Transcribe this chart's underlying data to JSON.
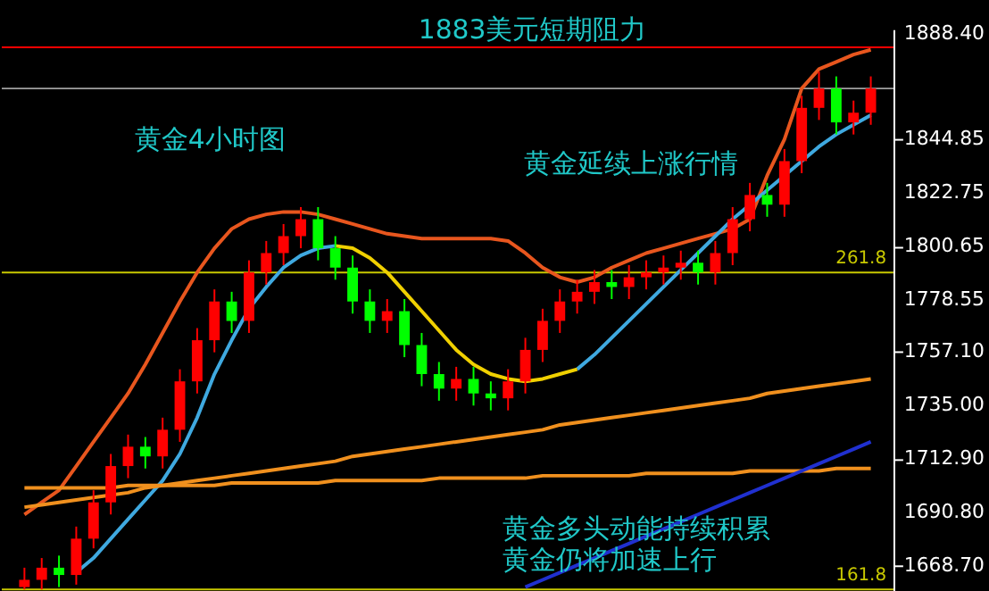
{
  "chart_data": {
    "type": "candlestick",
    "categories": [
      null,
      null,
      null,
      null,
      null,
      null,
      null,
      null,
      null,
      null,
      null,
      null,
      null,
      null,
      null,
      null,
      null,
      null,
      null,
      null,
      null,
      null,
      null,
      null,
      null,
      null,
      null,
      null,
      null,
      null,
      null,
      null,
      null,
      null,
      null,
      null,
      null,
      null,
      null,
      null,
      null,
      null,
      null,
      null,
      null,
      null,
      null,
      null,
      null,
      null
    ],
    "ohlc": [
      [
        1660,
        1668,
        1659,
        1663
      ],
      [
        1663,
        1672,
        1659,
        1668
      ],
      [
        1668,
        1673,
        1660,
        1665
      ],
      [
        1665,
        1685,
        1661,
        1680
      ],
      [
        1680,
        1700,
        1676,
        1695
      ],
      [
        1695,
        1715,
        1690,
        1710
      ],
      [
        1710,
        1723,
        1705,
        1718
      ],
      [
        1718,
        1722,
        1709,
        1714
      ],
      [
        1714,
        1730,
        1709,
        1725
      ],
      [
        1725,
        1750,
        1720,
        1745
      ],
      [
        1745,
        1767,
        1740,
        1762
      ],
      [
        1762,
        1783,
        1757,
        1778
      ],
      [
        1778,
        1782,
        1765,
        1770
      ],
      [
        1770,
        1795,
        1765,
        1790
      ],
      [
        1790,
        1803,
        1785,
        1798
      ],
      [
        1798,
        1810,
        1793,
        1805
      ],
      [
        1805,
        1817,
        1800,
        1812
      ],
      [
        1812,
        1817,
        1795,
        1800
      ],
      [
        1800,
        1805,
        1787,
        1792
      ],
      [
        1792,
        1797,
        1773,
        1778
      ],
      [
        1778,
        1783,
        1765,
        1770
      ],
      [
        1770,
        1779,
        1765,
        1774
      ],
      [
        1774,
        1779,
        1755,
        1760
      ],
      [
        1760,
        1765,
        1743,
        1748
      ],
      [
        1748,
        1753,
        1737,
        1742
      ],
      [
        1742,
        1751,
        1737,
        1746
      ],
      [
        1746,
        1751,
        1735,
        1740
      ],
      [
        1740,
        1745,
        1733,
        1738
      ],
      [
        1738,
        1750,
        1733,
        1745
      ],
      [
        1745,
        1763,
        1740,
        1758
      ],
      [
        1758,
        1775,
        1753,
        1770
      ],
      [
        1770,
        1783,
        1765,
        1778
      ],
      [
        1778,
        1787,
        1773,
        1782
      ],
      [
        1782,
        1791,
        1777,
        1786
      ],
      [
        1786,
        1791,
        1779,
        1784
      ],
      [
        1784,
        1793,
        1779,
        1788
      ],
      [
        1788,
        1795,
        1783,
        1790
      ],
      [
        1790,
        1797,
        1785,
        1792
      ],
      [
        1792,
        1799,
        1787,
        1794
      ],
      [
        1794,
        1799,
        1785,
        1790
      ],
      [
        1790,
        1803,
        1785,
        1798
      ],
      [
        1798,
        1817,
        1793,
        1812
      ],
      [
        1812,
        1827,
        1807,
        1822
      ],
      [
        1822,
        1827,
        1813,
        1818
      ],
      [
        1818,
        1841,
        1813,
        1836
      ],
      [
        1836,
        1863,
        1831,
        1858
      ],
      [
        1858,
        1873,
        1853,
        1866
      ],
      [
        1866,
        1871,
        1847,
        1852
      ],
      [
        1852,
        1861,
        1847,
        1856
      ],
      [
        1856,
        1871,
        1851,
        1866
      ]
    ],
    "colors": [
      "#ff0000",
      "#ff0000",
      "#00ff00",
      "#ff0000",
      "#ff0000",
      "#ff0000",
      "#ff0000",
      "#00ff00",
      "#ff0000",
      "#ff0000",
      "#ff0000",
      "#ff0000",
      "#00ff00",
      "#ff0000",
      "#ff0000",
      "#ff0000",
      "#ff0000",
      "#00ff00",
      "#00ff00",
      "#00ff00",
      "#00ff00",
      "#ff0000",
      "#00ff00",
      "#00ff00",
      "#00ff00",
      "#ff0000",
      "#00ff00",
      "#00ff00",
      "#ff0000",
      "#ff0000",
      "#ff0000",
      "#ff0000",
      "#ff0000",
      "#ff0000",
      "#00ff00",
      "#ff0000",
      "#ff0000",
      "#ff0000",
      "#ff0000",
      "#00ff00",
      "#ff0000",
      "#ff0000",
      "#ff0000",
      "#00ff00",
      "#ff0000",
      "#ff0000",
      "#ff0000",
      "#00ff00",
      "#ff0000",
      "#ff0000"
    ],
    "series": [
      {
        "type": "line",
        "color": "#e8561e",
        "values": [
          1690,
          1695,
          1700,
          1710,
          1720,
          1730,
          1740,
          1752,
          1765,
          1778,
          1790,
          1800,
          1808,
          1812,
          1814,
          1815,
          1815,
          1814,
          1812,
          1810,
          1808,
          1806,
          1805,
          1804,
          1804,
          1804,
          1804,
          1804,
          1803,
          1798,
          1792,
          1788,
          1786,
          1788,
          1792,
          1795,
          1798,
          1800,
          1802,
          1804,
          1806,
          1808,
          1812,
          1830,
          1845,
          1866,
          1874,
          1877,
          1880,
          1882
        ]
      },
      {
        "type": "line",
        "color": "#3fa9e0",
        "values": [
          null,
          null,
          null,
          1666,
          1672,
          1680,
          1688,
          1696,
          1704,
          1715,
          1730,
          1748,
          1762,
          1775,
          1784,
          1792,
          1797,
          1800,
          1801,
          null,
          null,
          null,
          null,
          null,
          null,
          null,
          null,
          null,
          null,
          null,
          null,
          null,
          1750,
          1756,
          1763,
          1770,
          1777,
          1784,
          1791,
          1798,
          1805,
          1812,
          1818,
          1824,
          1830,
          1836,
          1842,
          1847,
          1851,
          1855
        ]
      },
      {
        "type": "line",
        "color": "#f0d000",
        "values": [
          null,
          null,
          null,
          null,
          null,
          null,
          null,
          null,
          null,
          null,
          null,
          null,
          null,
          null,
          null,
          null,
          null,
          null,
          1801,
          1800,
          1796,
          1790,
          1782,
          1774,
          1766,
          1758,
          1752,
          1748,
          1746,
          1745,
          1746,
          1748,
          1750,
          null,
          null,
          null,
          null,
          null,
          null,
          null,
          null,
          null,
          null,
          null,
          null,
          null,
          null,
          null,
          null,
          null
        ]
      },
      {
        "type": "line",
        "color": "#f0901e",
        "values": [
          1693,
          1694,
          1695,
          1696,
          1697,
          1698,
          1699,
          1701,
          1702,
          1703,
          1704,
          1705,
          1706,
          1707,
          1708,
          1709,
          1710,
          1711,
          1712,
          1714,
          1715,
          1716,
          1717,
          1718,
          1719,
          1720,
          1721,
          1722,
          1723,
          1724,
          1725,
          1727,
          1728,
          1729,
          1730,
          1731,
          1732,
          1733,
          1734,
          1735,
          1736,
          1737,
          1738,
          1740,
          1741,
          1742,
          1743,
          1744,
          1745,
          1746
        ]
      },
      {
        "type": "line",
        "color": "#f0901e",
        "values": [
          1701,
          1701,
          1701,
          1701,
          1701,
          1701,
          1702,
          1702,
          1702,
          1702,
          1702,
          1702,
          1703,
          1703,
          1703,
          1703,
          1703,
          1703,
          1704,
          1704,
          1704,
          1704,
          1704,
          1704,
          1705,
          1705,
          1705,
          1705,
          1705,
          1705,
          1706,
          1706,
          1706,
          1706,
          1706,
          1706,
          1707,
          1707,
          1707,
          1707,
          1707,
          1707,
          1708,
          1708,
          1708,
          1708,
          1708,
          1709,
          1709,
          1709
        ]
      },
      {
        "type": "line",
        "color": "#2030d0",
        "values": [
          null,
          null,
          null,
          null,
          null,
          null,
          null,
          null,
          null,
          null,
          null,
          null,
          null,
          null,
          null,
          null,
          null,
          null,
          null,
          null,
          null,
          null,
          null,
          null,
          null,
          null,
          null,
          null,
          null,
          1660,
          1663,
          1666,
          1669,
          1672,
          1675,
          1678,
          1681,
          1684,
          1687,
          1690,
          1693,
          1696,
          1699,
          1702,
          1705,
          1708,
          1711,
          1714,
          1717,
          1720
        ]
      }
    ],
    "ylim": [
      1658,
      1890.5
    ],
    "yticks": [
      {
        "value": 1888.4,
        "label": "1888.40"
      },
      {
        "value": 1844.85,
        "label": "1844.85"
      },
      {
        "value": 1822.75,
        "label": "1822.75"
      },
      {
        "value": 1800.65,
        "label": "1800.65"
      },
      {
        "value": 1778.55,
        "label": "1778.55"
      },
      {
        "value": 1757.1,
        "label": "1757.10"
      },
      {
        "value": 1735,
        "label": "1735.00"
      },
      {
        "value": 1712.9,
        "label": "1712.90"
      },
      {
        "value": 1690.8,
        "label": "1690.80"
      },
      {
        "value": 1668.7,
        "label": "1668.70"
      }
    ],
    "ref_lines": [
      {
        "axis": "y",
        "value": 1883,
        "label": "1883美元短期阻力",
        "color": "#ff0000"
      },
      {
        "axis": "y",
        "value": 1866,
        "color": "#a0a0a0"
      },
      {
        "axis": "y",
        "value": 1790,
        "color": "#c8c800"
      },
      {
        "axis": "y",
        "value": 1659,
        "color": "#c8c800"
      }
    ],
    "annotations": [
      "黄金4小时图",
      "黄金延续上涨行情",
      "黄金多头动能持续积累",
      "黄金仍将加速上行",
      {
        "text": "261.8",
        "y": 1790
      },
      {
        "text": "161.8",
        "y": 1659
      }
    ],
    "tick_labels": "y",
    "grid": false
  }
}
